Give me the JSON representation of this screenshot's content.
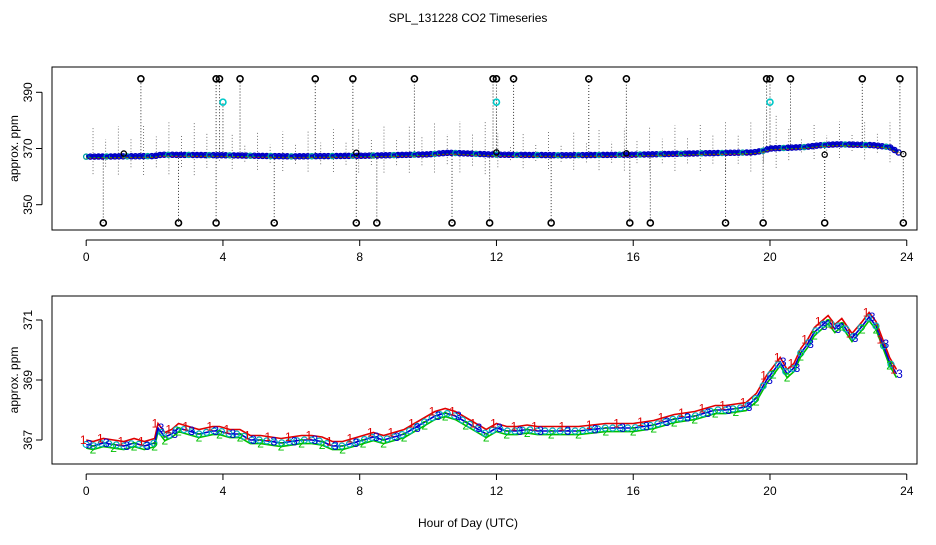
{
  "chart_data": {
    "type": "scatter",
    "title": "SPL_131228  CO2 Timeseries",
    "xlabel": "Hour of Day (UTC)",
    "x_ticks": [
      0,
      4,
      8,
      12,
      16,
      20,
      24
    ],
    "panels": [
      {
        "name": "full-range",
        "ylabel": "approx. ppm",
        "ylim": [
          341,
          399
        ],
        "y_ticks": [
          350,
          370,
          390
        ],
        "xlim": [
          -1,
          24.3
        ],
        "baseline": [
          [
            0,
            367.1
          ],
          [
            2,
            367.3
          ],
          [
            2.2,
            367.8
          ],
          [
            4,
            367.6
          ],
          [
            6,
            367.2
          ],
          [
            8,
            367.4
          ],
          [
            10,
            367.9
          ],
          [
            10.6,
            368.5
          ],
          [
            12,
            367.8
          ],
          [
            14,
            367.6
          ],
          [
            16,
            367.8
          ],
          [
            18,
            368.3
          ],
          [
            19.5,
            368.6
          ],
          [
            19.8,
            369.2
          ],
          [
            20,
            370.0
          ],
          [
            21,
            370.5
          ],
          [
            21.5,
            371.2
          ],
          [
            22,
            371.5
          ],
          [
            23,
            371.2
          ],
          [
            23.5,
            370.5
          ],
          [
            23.8,
            368.3
          ]
        ],
        "spikes_high_x": [
          1.6,
          3.8,
          3.9,
          4.5,
          6.7,
          7.8,
          9.6,
          11.9,
          12.0,
          12.5,
          14.7,
          15.8,
          19.9,
          20.0,
          20.6,
          22.7,
          23.8
        ],
        "spikes_high_y": 394.8,
        "spikes_cyan_x": [
          4.0,
          12.0,
          20.0
        ],
        "spikes_cyan_y": 386.5,
        "spikes_low_x": [
          0.5,
          2.7,
          3.8,
          5.5,
          7.9,
          8.5,
          10.7,
          11.8,
          13.6,
          15.9,
          16.5,
          18.7,
          19.8,
          21.6,
          23.9
        ],
        "spikes_low_y": 343.5
      },
      {
        "name": "zoomed",
        "ylabel": "approx. ppm",
        "ylim": [
          366.2,
          371.8
        ],
        "y_ticks": [
          367,
          369,
          371
        ],
        "xlim": [
          -1,
          24.3
        ],
        "series": [
          {
            "name": "1",
            "color": "#e00000"
          },
          {
            "name": "2",
            "color": "#00c000"
          },
          {
            "name": "3",
            "color": "#0000d0"
          }
        ],
        "points": [
          [
            0,
            366.85
          ],
          [
            0.2,
            366.8
          ],
          [
            0.5,
            366.9
          ],
          [
            0.8,
            366.85
          ],
          [
            1.1,
            366.8
          ],
          [
            1.4,
            366.9
          ],
          [
            1.7,
            366.8
          ],
          [
            2,
            366.9
          ],
          [
            2.1,
            367.4
          ],
          [
            2.3,
            367.1
          ],
          [
            2.5,
            367.2
          ],
          [
            2.7,
            367.4
          ],
          [
            3,
            367.3
          ],
          [
            3.3,
            367.2
          ],
          [
            3.7,
            367.3
          ],
          [
            3.9,
            367.3
          ],
          [
            4.2,
            367.2
          ],
          [
            4.5,
            367.2
          ],
          [
            4.8,
            367.0
          ],
          [
            5.1,
            367.0
          ],
          [
            5.4,
            366.95
          ],
          [
            5.7,
            366.9
          ],
          [
            6,
            366.95
          ],
          [
            6.3,
            367.0
          ],
          [
            6.6,
            367.0
          ],
          [
            6.9,
            366.95
          ],
          [
            7.2,
            366.8
          ],
          [
            7.5,
            366.8
          ],
          [
            7.8,
            366.9
          ],
          [
            8.1,
            367.0
          ],
          [
            8.4,
            367.1
          ],
          [
            8.7,
            367.0
          ],
          [
            9,
            367.1
          ],
          [
            9.3,
            367.2
          ],
          [
            9.6,
            367.4
          ],
          [
            9.9,
            367.6
          ],
          [
            10.2,
            367.8
          ],
          [
            10.5,
            367.9
          ],
          [
            10.8,
            367.8
          ],
          [
            11.1,
            367.6
          ],
          [
            11.4,
            367.4
          ],
          [
            11.7,
            367.2
          ],
          [
            12,
            367.4
          ],
          [
            12.3,
            367.3
          ],
          [
            12.6,
            367.3
          ],
          [
            12.9,
            367.35
          ],
          [
            13.2,
            367.3
          ],
          [
            13.6,
            367.3
          ],
          [
            14,
            367.3
          ],
          [
            14.4,
            367.3
          ],
          [
            14.8,
            367.35
          ],
          [
            15.2,
            367.4
          ],
          [
            15.6,
            367.4
          ],
          [
            16,
            367.4
          ],
          [
            16.3,
            367.45
          ],
          [
            16.6,
            367.5
          ],
          [
            16.9,
            367.6
          ],
          [
            17.2,
            367.7
          ],
          [
            17.5,
            367.75
          ],
          [
            17.8,
            367.8
          ],
          [
            18.1,
            367.9
          ],
          [
            18.4,
            368.0
          ],
          [
            18.7,
            368.0
          ],
          [
            19.0,
            368.05
          ],
          [
            19.3,
            368.1
          ],
          [
            19.6,
            368.4
          ],
          [
            19.9,
            369.0
          ],
          [
            20.1,
            369.3
          ],
          [
            20.3,
            369.6
          ],
          [
            20.5,
            369.2
          ],
          [
            20.7,
            369.4
          ],
          [
            20.9,
            369.9
          ],
          [
            21.1,
            370.2
          ],
          [
            21.3,
            370.6
          ],
          [
            21.5,
            370.8
          ],
          [
            21.7,
            371.0
          ],
          [
            21.9,
            370.7
          ],
          [
            22.1,
            370.9
          ],
          [
            22.4,
            370.4
          ],
          [
            22.7,
            370.8
          ],
          [
            22.9,
            371.1
          ],
          [
            23.1,
            370.8
          ],
          [
            23.3,
            370.2
          ],
          [
            23.5,
            369.6
          ],
          [
            23.7,
            369.2
          ]
        ]
      }
    ]
  }
}
